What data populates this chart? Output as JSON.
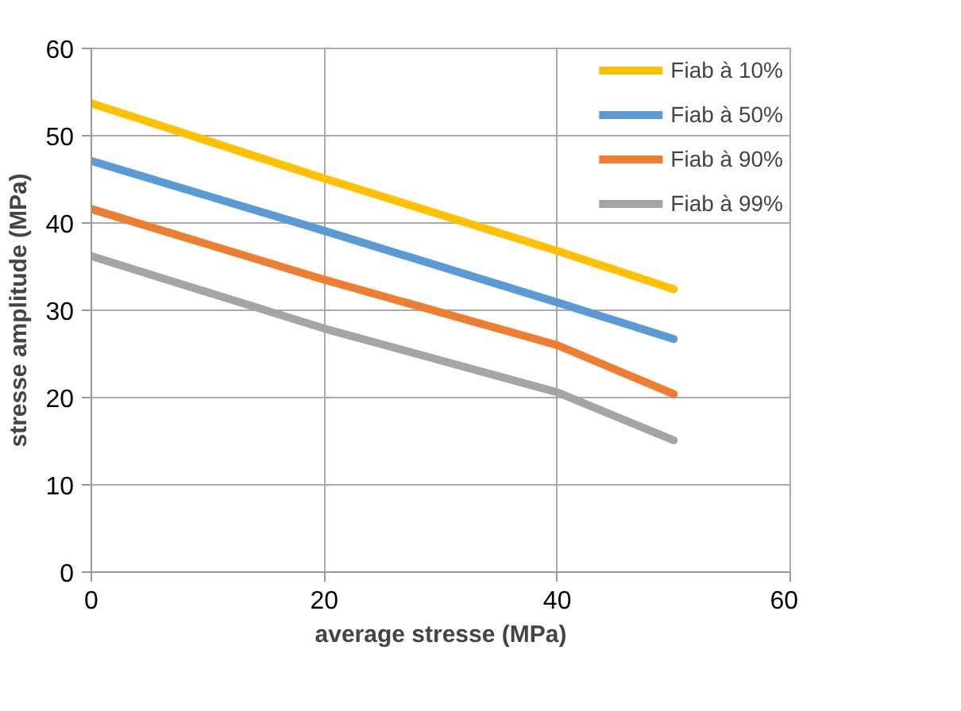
{
  "chart_data": {
    "type": "line",
    "xlabel": "average stresse (MPa)",
    "ylabel": "stresse amplitude (MPa)",
    "x": [
      0,
      20,
      40,
      50
    ],
    "series": [
      {
        "name": "Fiab à 10%",
        "color": "#ffc000",
        "values": [
          53.7,
          45.1,
          36.8,
          32.4
        ]
      },
      {
        "name": "Fiab à 50%",
        "color": "#5b9bd5",
        "values": [
          47.1,
          39.1,
          30.9,
          26.7
        ]
      },
      {
        "name": "Fiab à 90%",
        "color": "#ed7d31",
        "values": [
          41.6,
          33.5,
          26.0,
          20.4
        ]
      },
      {
        "name": "Fiab à 99%",
        "color": "#a5a5a5",
        "values": [
          36.2,
          27.9,
          20.6,
          15.1
        ]
      }
    ],
    "xlim": [
      0,
      60
    ],
    "ylim": [
      0,
      60
    ],
    "xticks": [
      0,
      20,
      40,
      60
    ],
    "yticks": [
      0,
      10,
      20,
      30,
      40,
      50,
      60
    ],
    "grid": true,
    "legend": "right",
    "marker": "none",
    "line_style": "solid"
  }
}
